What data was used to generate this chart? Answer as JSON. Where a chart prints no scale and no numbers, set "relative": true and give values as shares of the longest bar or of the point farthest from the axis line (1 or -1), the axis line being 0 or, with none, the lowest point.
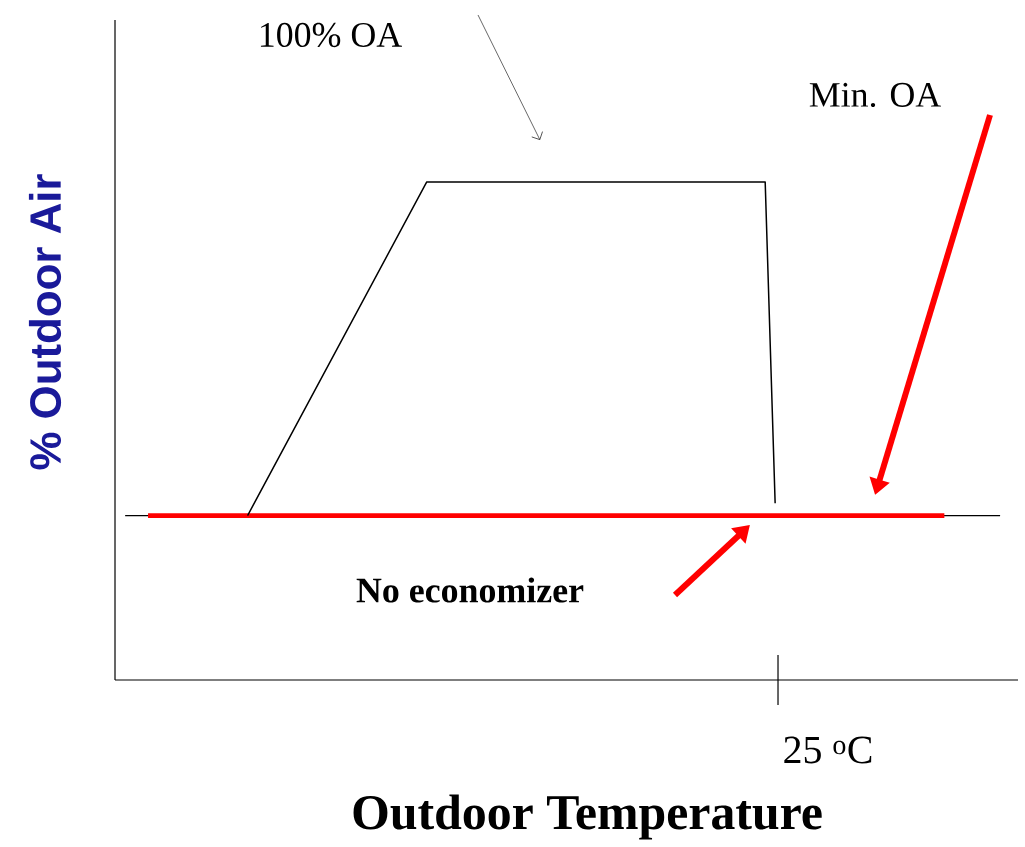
{
  "chart_data": {
    "type": "line",
    "relative": true,
    "xlabel": "Outdoor Temperature",
    "ylabel": "% Outdoor Air",
    "categories": [
      null,
      null,
      null,
      null,
      null,
      null,
      null,
      null,
      null,
      null,
      null,
      null,
      null,
      null,
      null,
      null,
      null,
      null,
      null,
      null,
      null,
      null,
      null,
      null,
      null,
      null,
      null,
      null,
      null,
      null,
      null,
      null,
      null,
      null,
      null,
      null,
      null,
      null,
      null,
      null,
      null,
      null,
      null,
      null,
      null,
      null,
      null,
      null,
      null,
      null,
      null,
      null,
      null,
      null,
      null,
      null,
      null,
      null,
      null,
      null,
      null,
      null,
      null,
      null,
      null,
      null,
      null,
      null,
      null,
      null,
      null,
      null,
      null,
      null,
      null,
      null,
      null,
      null,
      null,
      null,
      null
    ],
    "series": [
      {
        "color": "#ff0000",
        "values": [
          0.33,
          null,
          null,
          null,
          null,
          null,
          null,
          null,
          null,
          null,
          null,
          null,
          null,
          null,
          null,
          null,
          null,
          null,
          null,
          null,
          null,
          null,
          null,
          null,
          null,
          null,
          null,
          null,
          null,
          null,
          null,
          null,
          null,
          null,
          null,
          null,
          null,
          null,
          null,
          null,
          null,
          null,
          null,
          null,
          null,
          null,
          null,
          null,
          null,
          null,
          null,
          null,
          null,
          null,
          null,
          null,
          null,
          null,
          null,
          null,
          null,
          null,
          null,
          null,
          null,
          null,
          null,
          null,
          null,
          null,
          null,
          null,
          null,
          null,
          null,
          null,
          null,
          null,
          null,
          null,
          0.33
        ]
      },
      {
        "color": "#000000",
        "values": [
          null,
          null,
          null,
          null,
          null,
          null,
          null,
          null,
          null,
          null,
          0.33,
          null,
          null,
          null,
          null,
          null,
          null,
          null,
          null,
          null,
          null,
          null,
          null,
          null,
          null,
          null,
          null,
          null,
          1,
          null,
          null,
          null,
          null,
          null,
          null,
          null,
          null,
          null,
          null,
          null,
          null,
          null,
          null,
          null,
          null,
          null,
          null,
          null,
          null,
          null,
          null,
          null,
          null,
          null,
          null,
          null,
          null,
          null,
          null,
          null,
          null,
          null,
          1,
          0.355,
          null,
          null,
          null,
          null,
          null,
          null,
          null,
          null,
          null,
          null,
          null,
          null,
          null,
          null,
          null,
          null,
          null
        ]
      }
    ],
    "ref_lines": [
      {
        "axis": "y",
        "value": 0.33,
        "color": "#000000"
      }
    ],
    "annotations": [
      "100% OA",
      "Min. OA",
      "No economizer",
      "25 $^{o}$C"
    ]
  }
}
